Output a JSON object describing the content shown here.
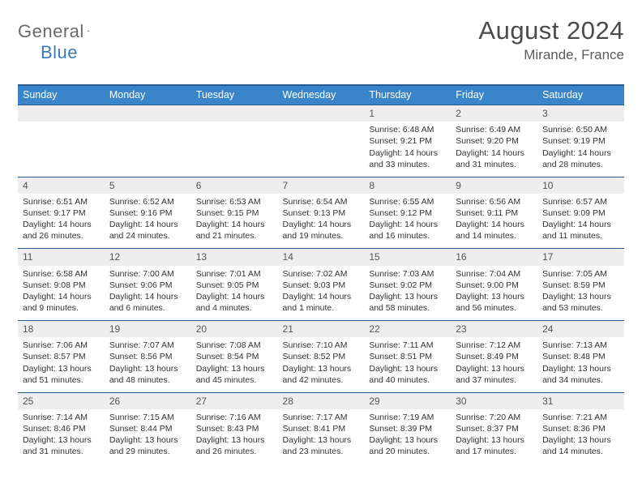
{
  "logo": {
    "part1": "General",
    "part2": "Blue"
  },
  "title": "August 2024",
  "location": "Mirande, France",
  "weekdays": [
    "Sunday",
    "Monday",
    "Tuesday",
    "Wednesday",
    "Thursday",
    "Friday",
    "Saturday"
  ],
  "colors": {
    "header_bg": "#3a85c9",
    "header_border": "#2b5b8c",
    "daynum_bg": "#eeeeee",
    "logo_gray": "#6a6a6a",
    "logo_blue": "#3a7ab8",
    "text": "#333333"
  },
  "weeks": [
    [
      null,
      null,
      null,
      null,
      {
        "n": "1",
        "sr": "Sunrise: 6:48 AM",
        "ss": "Sunset: 9:21 PM",
        "d1": "Daylight: 14 hours",
        "d2": "and 33 minutes."
      },
      {
        "n": "2",
        "sr": "Sunrise: 6:49 AM",
        "ss": "Sunset: 9:20 PM",
        "d1": "Daylight: 14 hours",
        "d2": "and 31 minutes."
      },
      {
        "n": "3",
        "sr": "Sunrise: 6:50 AM",
        "ss": "Sunset: 9:19 PM",
        "d1": "Daylight: 14 hours",
        "d2": "and 28 minutes."
      }
    ],
    [
      {
        "n": "4",
        "sr": "Sunrise: 6:51 AM",
        "ss": "Sunset: 9:17 PM",
        "d1": "Daylight: 14 hours",
        "d2": "and 26 minutes."
      },
      {
        "n": "5",
        "sr": "Sunrise: 6:52 AM",
        "ss": "Sunset: 9:16 PM",
        "d1": "Daylight: 14 hours",
        "d2": "and 24 minutes."
      },
      {
        "n": "6",
        "sr": "Sunrise: 6:53 AM",
        "ss": "Sunset: 9:15 PM",
        "d1": "Daylight: 14 hours",
        "d2": "and 21 minutes."
      },
      {
        "n": "7",
        "sr": "Sunrise: 6:54 AM",
        "ss": "Sunset: 9:13 PM",
        "d1": "Daylight: 14 hours",
        "d2": "and 19 minutes."
      },
      {
        "n": "8",
        "sr": "Sunrise: 6:55 AM",
        "ss": "Sunset: 9:12 PM",
        "d1": "Daylight: 14 hours",
        "d2": "and 16 minutes."
      },
      {
        "n": "9",
        "sr": "Sunrise: 6:56 AM",
        "ss": "Sunset: 9:11 PM",
        "d1": "Daylight: 14 hours",
        "d2": "and 14 minutes."
      },
      {
        "n": "10",
        "sr": "Sunrise: 6:57 AM",
        "ss": "Sunset: 9:09 PM",
        "d1": "Daylight: 14 hours",
        "d2": "and 11 minutes."
      }
    ],
    [
      {
        "n": "11",
        "sr": "Sunrise: 6:58 AM",
        "ss": "Sunset: 9:08 PM",
        "d1": "Daylight: 14 hours",
        "d2": "and 9 minutes."
      },
      {
        "n": "12",
        "sr": "Sunrise: 7:00 AM",
        "ss": "Sunset: 9:06 PM",
        "d1": "Daylight: 14 hours",
        "d2": "and 6 minutes."
      },
      {
        "n": "13",
        "sr": "Sunrise: 7:01 AM",
        "ss": "Sunset: 9:05 PM",
        "d1": "Daylight: 14 hours",
        "d2": "and 4 minutes."
      },
      {
        "n": "14",
        "sr": "Sunrise: 7:02 AM",
        "ss": "Sunset: 9:03 PM",
        "d1": "Daylight: 14 hours",
        "d2": "and 1 minute."
      },
      {
        "n": "15",
        "sr": "Sunrise: 7:03 AM",
        "ss": "Sunset: 9:02 PM",
        "d1": "Daylight: 13 hours",
        "d2": "and 58 minutes."
      },
      {
        "n": "16",
        "sr": "Sunrise: 7:04 AM",
        "ss": "Sunset: 9:00 PM",
        "d1": "Daylight: 13 hours",
        "d2": "and 56 minutes."
      },
      {
        "n": "17",
        "sr": "Sunrise: 7:05 AM",
        "ss": "Sunset: 8:59 PM",
        "d1": "Daylight: 13 hours",
        "d2": "and 53 minutes."
      }
    ],
    [
      {
        "n": "18",
        "sr": "Sunrise: 7:06 AM",
        "ss": "Sunset: 8:57 PM",
        "d1": "Daylight: 13 hours",
        "d2": "and 51 minutes."
      },
      {
        "n": "19",
        "sr": "Sunrise: 7:07 AM",
        "ss": "Sunset: 8:56 PM",
        "d1": "Daylight: 13 hours",
        "d2": "and 48 minutes."
      },
      {
        "n": "20",
        "sr": "Sunrise: 7:08 AM",
        "ss": "Sunset: 8:54 PM",
        "d1": "Daylight: 13 hours",
        "d2": "and 45 minutes."
      },
      {
        "n": "21",
        "sr": "Sunrise: 7:10 AM",
        "ss": "Sunset: 8:52 PM",
        "d1": "Daylight: 13 hours",
        "d2": "and 42 minutes."
      },
      {
        "n": "22",
        "sr": "Sunrise: 7:11 AM",
        "ss": "Sunset: 8:51 PM",
        "d1": "Daylight: 13 hours",
        "d2": "and 40 minutes."
      },
      {
        "n": "23",
        "sr": "Sunrise: 7:12 AM",
        "ss": "Sunset: 8:49 PM",
        "d1": "Daylight: 13 hours",
        "d2": "and 37 minutes."
      },
      {
        "n": "24",
        "sr": "Sunrise: 7:13 AM",
        "ss": "Sunset: 8:48 PM",
        "d1": "Daylight: 13 hours",
        "d2": "and 34 minutes."
      }
    ],
    [
      {
        "n": "25",
        "sr": "Sunrise: 7:14 AM",
        "ss": "Sunset: 8:46 PM",
        "d1": "Daylight: 13 hours",
        "d2": "and 31 minutes."
      },
      {
        "n": "26",
        "sr": "Sunrise: 7:15 AM",
        "ss": "Sunset: 8:44 PM",
        "d1": "Daylight: 13 hours",
        "d2": "and 29 minutes."
      },
      {
        "n": "27",
        "sr": "Sunrise: 7:16 AM",
        "ss": "Sunset: 8:43 PM",
        "d1": "Daylight: 13 hours",
        "d2": "and 26 minutes."
      },
      {
        "n": "28",
        "sr": "Sunrise: 7:17 AM",
        "ss": "Sunset: 8:41 PM",
        "d1": "Daylight: 13 hours",
        "d2": "and 23 minutes."
      },
      {
        "n": "29",
        "sr": "Sunrise: 7:19 AM",
        "ss": "Sunset: 8:39 PM",
        "d1": "Daylight: 13 hours",
        "d2": "and 20 minutes."
      },
      {
        "n": "30",
        "sr": "Sunrise: 7:20 AM",
        "ss": "Sunset: 8:37 PM",
        "d1": "Daylight: 13 hours",
        "d2": "and 17 minutes."
      },
      {
        "n": "31",
        "sr": "Sunrise: 7:21 AM",
        "ss": "Sunset: 8:36 PM",
        "d1": "Daylight: 13 hours",
        "d2": "and 14 minutes."
      }
    ]
  ]
}
